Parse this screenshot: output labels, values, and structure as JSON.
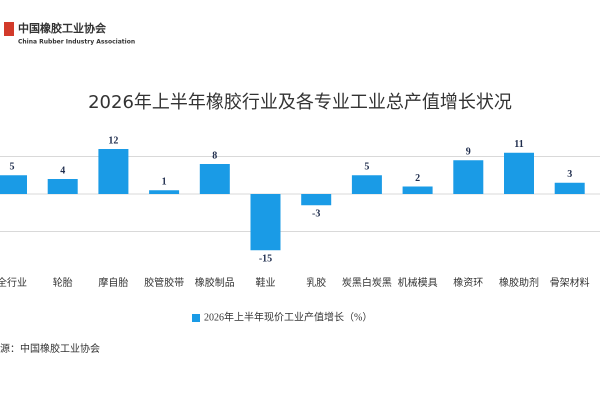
{
  "header": {
    "org_name": "中国橡胶工业协会",
    "org_name_en": "China Rubber Industry Association"
  },
  "chart_data": {
    "type": "bar",
    "title": "2026年上半年橡胶行业及各专业工业总产值增长状况",
    "categories": [
      "全行业",
      "轮胎",
      "摩自胎",
      "胶管胶带",
      "橡胶制品",
      "鞋业",
      "乳胶",
      "炭黑白炭黑",
      "机械模具",
      "橡资环",
      "橡胶助剂",
      "骨架材料"
    ],
    "series": [
      {
        "name": "2026年上半年现价工业产值增长（%）",
        "color": "#1a9be6",
        "values": [
          5,
          4,
          12,
          1,
          8,
          -15,
          -3,
          5,
          2,
          9,
          11,
          3
        ]
      }
    ],
    "ylim": [
      -20,
      20
    ],
    "yticks": [
      -10,
      0,
      10
    ],
    "grid": true,
    "legend": "bottom"
  },
  "footer": {
    "source": "源：中国橡胶工业协会"
  }
}
